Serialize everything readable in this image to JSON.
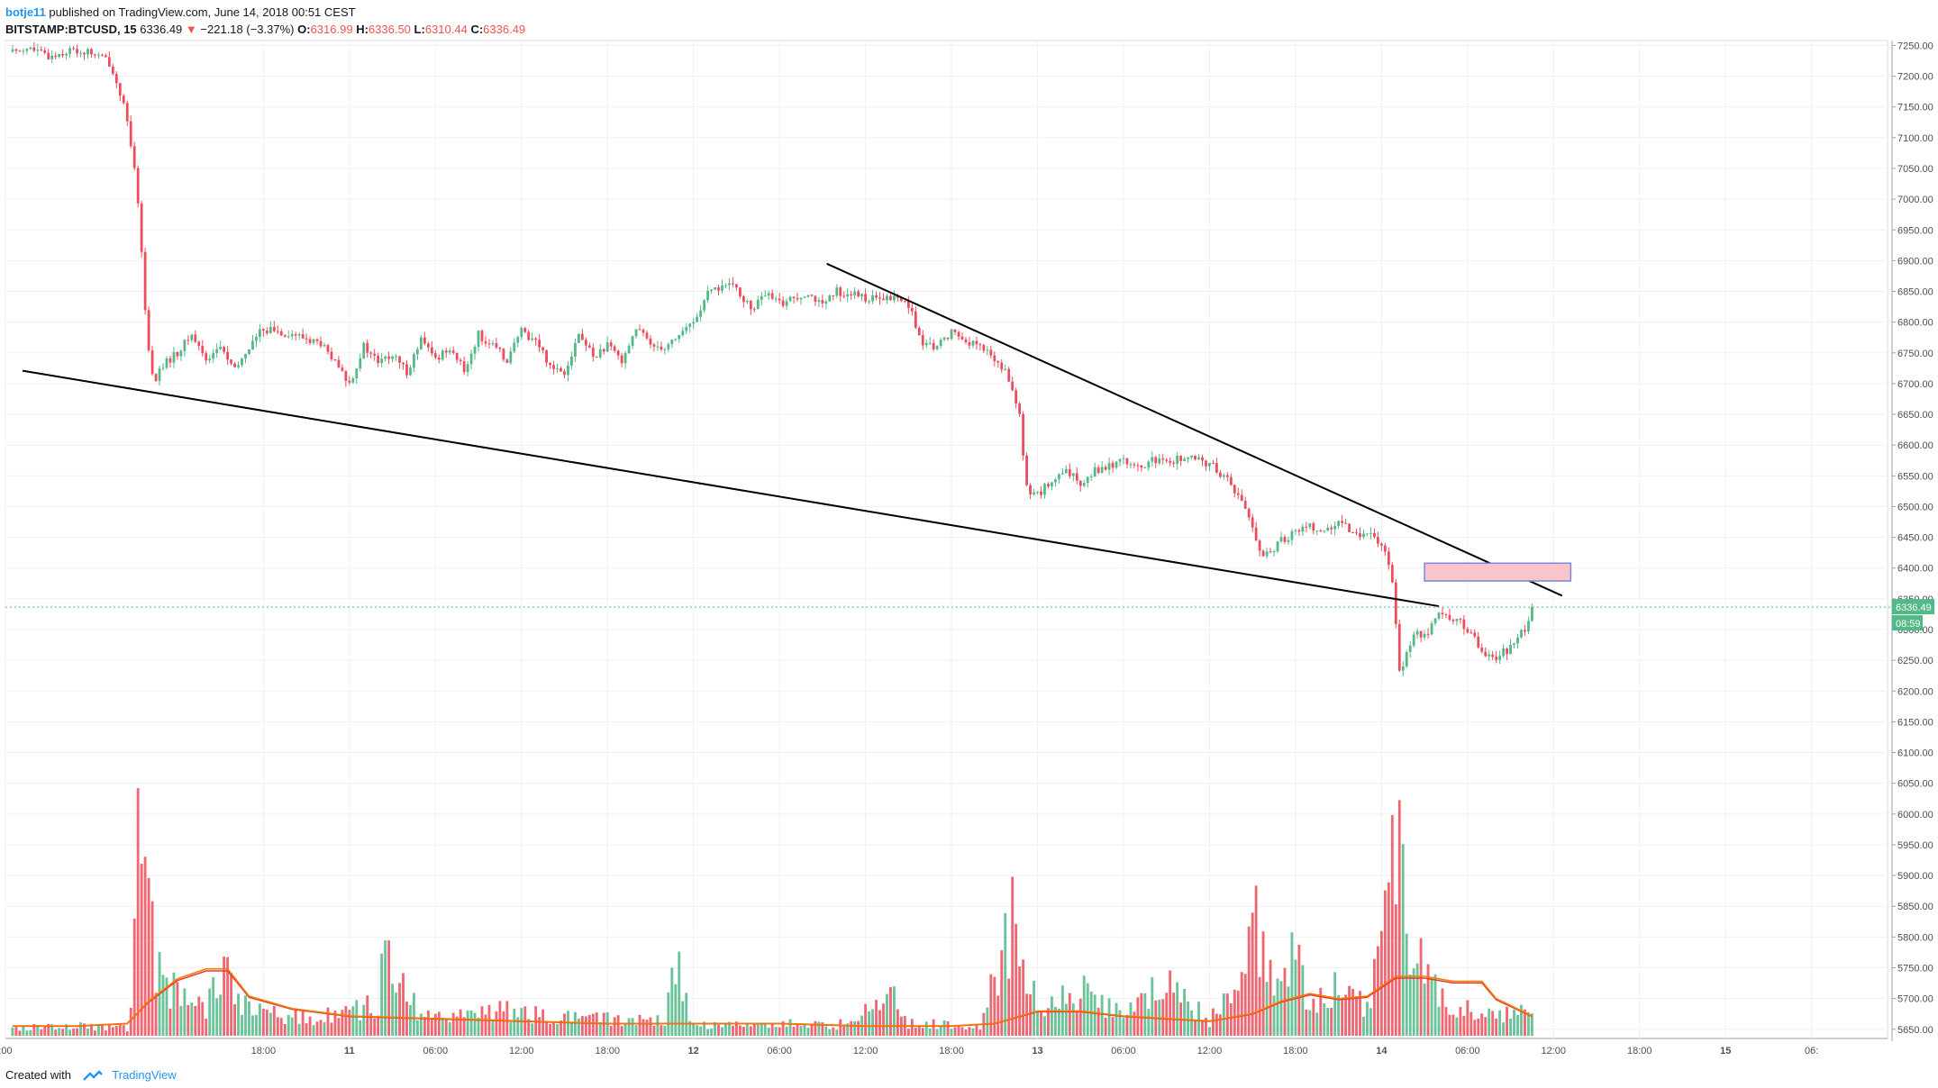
{
  "header": {
    "author": "botje11",
    "published_text": "published on TradingView.com, June 14, 2018 00:51 CEST",
    "symbol": "BITSTAMP:BTCUSD, 15",
    "last": "6336.49",
    "change": "−221.18 (−3.37%)",
    "o_label": "O:",
    "o_value": "6316.99",
    "h_label": "H:",
    "h_value": "6336.50",
    "l_label": "L:",
    "l_value": "6310.44",
    "c_label": "C:",
    "c_value": "6336.49"
  },
  "footer": {
    "created_with": "Created with",
    "brand": "TradingView"
  },
  "chart_data": {
    "type": "candlestick",
    "colors": {
      "up": "#53b987",
      "down": "#eb4d5c",
      "trendline": "#000000",
      "zone_fill": "#f8c5cb",
      "zone_border": "#7a86d6",
      "last_price_tag": "#53b987",
      "vol_ma_1": "#f57c00",
      "vol_ma_2": "#e53935"
    },
    "y_ticks": [
      "7250.00",
      "7200.00",
      "7150.00",
      "7100.00",
      "7050.00",
      "7000.00",
      "6950.00",
      "6900.00",
      "6850.00",
      "6800.00",
      "6750.00",
      "6700.00",
      "6650.00",
      "6600.00",
      "6550.00",
      "6500.00",
      "6450.00",
      "6400.00",
      "6350.00",
      "6300.00",
      "6250.00",
      "6200.00",
      "6150.00",
      "6100.00",
      "6050.00",
      "6000.00",
      "5950.00",
      "5900.00",
      "5850.00",
      "5800.00",
      "5750.00",
      "5700.00",
      "5650.00"
    ],
    "ylim": [
      5635,
      7258
    ],
    "x_ticks": [
      ":00",
      "18:00",
      "11",
      "06:00",
      "12:00",
      "18:00",
      "12",
      "06:00",
      "12:00",
      "18:00",
      "13",
      "06:00",
      "12:00",
      "18:00",
      "14",
      "06:00",
      "12:00",
      "18:00",
      "15",
      "06:"
    ],
    "x_tick_hours": [
      0,
      18,
      24,
      30,
      36,
      42,
      48,
      54,
      60,
      66,
      72,
      78,
      84,
      90,
      96,
      102,
      108,
      114,
      120,
      126
    ],
    "xlim_hours": [
      0,
      131.3
    ],
    "last_price_label": "6336.49",
    "countdown_label": "08:59",
    "price_path": [
      [
        0.5,
        7240
      ],
      [
        1.5,
        7247
      ],
      [
        3,
        7232
      ],
      [
        4.5,
        7242
      ],
      [
        6,
        7238
      ],
      [
        7.2,
        7225
      ],
      [
        8.2,
        7160
      ],
      [
        8.8,
        7080
      ],
      [
        9.3,
        6990
      ],
      [
        9.8,
        6800
      ],
      [
        10.3,
        6700
      ],
      [
        11,
        6730
      ],
      [
        12,
        6750
      ],
      [
        13,
        6780
      ],
      [
        14,
        6740
      ],
      [
        15,
        6760
      ],
      [
        16,
        6720
      ],
      [
        17,
        6760
      ],
      [
        18,
        6790
      ],
      [
        20,
        6780
      ],
      [
        22,
        6765
      ],
      [
        24,
        6700
      ],
      [
        25,
        6760
      ],
      [
        26,
        6735
      ],
      [
        27,
        6745
      ],
      [
        28,
        6720
      ],
      [
        29,
        6770
      ],
      [
        30,
        6740
      ],
      [
        31,
        6760
      ],
      [
        32,
        6720
      ],
      [
        33,
        6780
      ],
      [
        34,
        6760
      ],
      [
        35,
        6740
      ],
      [
        36,
        6785
      ],
      [
        37,
        6770
      ],
      [
        38,
        6730
      ],
      [
        39,
        6720
      ],
      [
        40,
        6780
      ],
      [
        41,
        6745
      ],
      [
        42,
        6760
      ],
      [
        43,
        6740
      ],
      [
        44,
        6790
      ],
      [
        45,
        6765
      ],
      [
        46,
        6760
      ],
      [
        47,
        6780
      ],
      [
        48,
        6800
      ],
      [
        49,
        6845
      ],
      [
        50,
        6860
      ],
      [
        51,
        6855
      ],
      [
        52,
        6820
      ],
      [
        53,
        6845
      ],
      [
        54,
        6830
      ],
      [
        55,
        6840
      ],
      [
        56,
        6850
      ],
      [
        57,
        6825
      ],
      [
        58,
        6850
      ],
      [
        59,
        6845
      ],
      [
        60,
        6840
      ],
      [
        61,
        6835
      ],
      [
        62,
        6840
      ],
      [
        63,
        6830
      ],
      [
        64,
        6760
      ],
      [
        65,
        6760
      ],
      [
        66,
        6785
      ],
      [
        67,
        6770
      ],
      [
        68,
        6760
      ],
      [
        69,
        6740
      ],
      [
        70,
        6710
      ],
      [
        70.8,
        6640
      ],
      [
        71.2,
        6530
      ],
      [
        72,
        6520
      ],
      [
        73,
        6540
      ],
      [
        74,
        6555
      ],
      [
        75,
        6540
      ],
      [
        76,
        6560
      ],
      [
        77,
        6565
      ],
      [
        78,
        6580
      ],
      [
        79,
        6560
      ],
      [
        80,
        6575
      ],
      [
        81,
        6570
      ],
      [
        82,
        6580
      ],
      [
        83,
        6575
      ],
      [
        84,
        6570
      ],
      [
        85,
        6550
      ],
      [
        86,
        6520
      ],
      [
        86.8,
        6480
      ],
      [
        87.5,
        6430
      ],
      [
        88,
        6420
      ],
      [
        89,
        6445
      ],
      [
        90,
        6460
      ],
      [
        91,
        6470
      ],
      [
        92,
        6460
      ],
      [
        93,
        6470
      ],
      [
        94,
        6460
      ],
      [
        95,
        6455
      ],
      [
        96,
        6440
      ],
      [
        96.8,
        6380
      ],
      [
        97.3,
        6220
      ],
      [
        97.7,
        6260
      ],
      [
        98.3,
        6300
      ],
      [
        99,
        6290
      ],
      [
        100,
        6325
      ],
      [
        101,
        6320
      ],
      [
        102,
        6300
      ],
      [
        103,
        6265
      ],
      [
        104,
        6255
      ],
      [
        105,
        6270
      ],
      [
        106,
        6300
      ],
      [
        106.5,
        6336.49
      ]
    ],
    "volume_path": [
      [
        0.5,
        0.03
      ],
      [
        5,
        0.04
      ],
      [
        8.5,
        0.03
      ],
      [
        9,
        0.35
      ],
      [
        9.4,
        0.95
      ],
      [
        9.8,
        0.6
      ],
      [
        10.3,
        0.35
      ],
      [
        11,
        0.22
      ],
      [
        12.5,
        0.14
      ],
      [
        14,
        0.1
      ],
      [
        15.5,
        0.3
      ],
      [
        16,
        0.15
      ],
      [
        18,
        0.09
      ],
      [
        21,
        0.07
      ],
      [
        26,
        0.12
      ],
      [
        26.5,
        0.4
      ],
      [
        27,
        0.25
      ],
      [
        29,
        0.08
      ],
      [
        35,
        0.1
      ],
      [
        40,
        0.07
      ],
      [
        46,
        0.06
      ],
      [
        46.5,
        0.35
      ],
      [
        48,
        0.05
      ],
      [
        52,
        0.04
      ],
      [
        55,
        0.05
      ],
      [
        58,
        0.04
      ],
      [
        62,
        0.15
      ],
      [
        63,
        0.05
      ],
      [
        68,
        0.04
      ],
      [
        70.5,
        0.5
      ],
      [
        71,
        0.35
      ],
      [
        72,
        0.1
      ],
      [
        75,
        0.18
      ],
      [
        78,
        0.09
      ],
      [
        81,
        0.2
      ],
      [
        84,
        0.06
      ],
      [
        86.5,
        0.3
      ],
      [
        87,
        0.5
      ],
      [
        88,
        0.25
      ],
      [
        90,
        0.35
      ],
      [
        91,
        0.12
      ],
      [
        93,
        0.2
      ],
      [
        95,
        0.1
      ],
      [
        96.5,
        0.55
      ],
      [
        97,
        0.95
      ],
      [
        97.5,
        0.55
      ],
      [
        98.5,
        0.35
      ],
      [
        100,
        0.15
      ],
      [
        102,
        0.1
      ],
      [
        104,
        0.08
      ],
      [
        106,
        0.09
      ],
      [
        106.5,
        0.12
      ]
    ],
    "volume_ma": [
      [
        0.5,
        0.04
      ],
      [
        5,
        0.04
      ],
      [
        8.5,
        0.05
      ],
      [
        10,
        0.14
      ],
      [
        12,
        0.23
      ],
      [
        14,
        0.27
      ],
      [
        15.5,
        0.27
      ],
      [
        17,
        0.16
      ],
      [
        20,
        0.11
      ],
      [
        24,
        0.08
      ],
      [
        30,
        0.07
      ],
      [
        36,
        0.06
      ],
      [
        42,
        0.05
      ],
      [
        48,
        0.05
      ],
      [
        54,
        0.05
      ],
      [
        60,
        0.04
      ],
      [
        66,
        0.04
      ],
      [
        69,
        0.05
      ],
      [
        72,
        0.1
      ],
      [
        75,
        0.1
      ],
      [
        78,
        0.08
      ],
      [
        81,
        0.07
      ],
      [
        84,
        0.06
      ],
      [
        87,
        0.09
      ],
      [
        89,
        0.14
      ],
      [
        91,
        0.17
      ],
      [
        93,
        0.15
      ],
      [
        95,
        0.16
      ],
      [
        97,
        0.24
      ],
      [
        99,
        0.24
      ],
      [
        101,
        0.22
      ],
      [
        103,
        0.22
      ],
      [
        104,
        0.15
      ],
      [
        106.5,
        0.08
      ]
    ],
    "annotations": {
      "lower_trendline": {
        "from": [
          1.2,
          6721
        ],
        "to": [
          100,
          6338
        ]
      },
      "upper_trendline": {
        "from": [
          57.3,
          6895
        ],
        "to": [
          108.6,
          6355
        ]
      },
      "resistance_zone": {
        "x": [
          99,
          109.2
        ],
        "y": [
          6379,
          6408
        ]
      }
    }
  }
}
